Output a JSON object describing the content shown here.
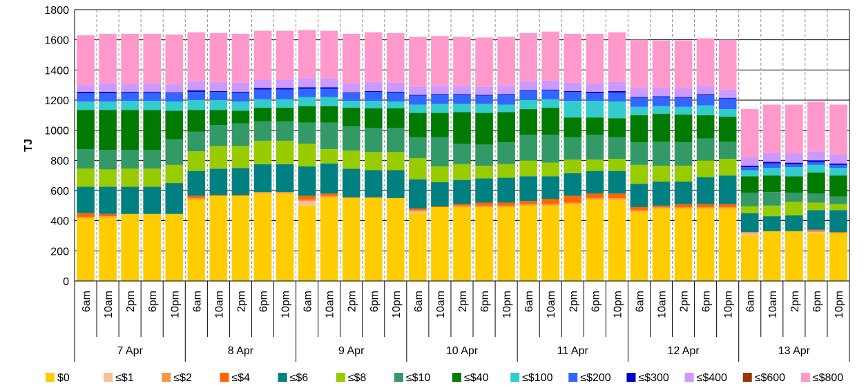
{
  "chart_data": {
    "type": "bar",
    "stacked": true,
    "ylabel": "TJ",
    "ylim": [
      0,
      1800
    ],
    "yticks": [
      0,
      200,
      400,
      600,
      800,
      1000,
      1200,
      1400,
      1600,
      1800
    ],
    "grid": "horizontal major + dashed vertical separators",
    "legend_position": "bottom",
    "groups": [
      "7 Apr",
      "8 Apr",
      "9 Apr",
      "10 Apr",
      "11 Apr",
      "12 Apr",
      "13 Apr"
    ],
    "times": [
      "6am",
      "10am",
      "2pm",
      "6pm",
      "10pm"
    ],
    "series": [
      {
        "name": "$0",
        "color": "#FFCC00",
        "values": [
          415,
          420,
          445,
          445,
          445,
          540,
          565,
          565,
          580,
          580,
          500,
          555,
          550,
          550,
          550,
          450,
          490,
          490,
          490,
          490,
          500,
          500,
          510,
          540,
          540,
          460,
          480,
          480,
          480,
          480,
          300,
          330,
          330,
          315,
          320
        ]
      },
      {
        "name": "≤$1",
        "color": "#FAC090",
        "values": [
          0,
          0,
          0,
          0,
          0,
          0,
          0,
          0,
          0,
          0,
          30,
          0,
          0,
          0,
          0,
          10,
          0,
          0,
          0,
          0,
          0,
          0,
          0,
          0,
          0,
          0,
          0,
          0,
          0,
          0,
          15,
          0,
          0,
          10,
          0
        ]
      },
      {
        "name": "≤$2",
        "color": "#F79646",
        "values": [
          10,
          10,
          0,
          0,
          0,
          10,
          0,
          0,
          10,
          10,
          10,
          10,
          5,
          5,
          0,
          10,
          0,
          10,
          10,
          10,
          10,
          10,
          10,
          10,
          10,
          10,
          10,
          10,
          10,
          10,
          10,
          0,
          0,
          10,
          0
        ]
      },
      {
        "name": "≤$4",
        "color": "#FF6600",
        "values": [
          25,
          15,
          0,
          0,
          0,
          15,
          5,
          5,
          0,
          0,
          25,
          15,
          0,
          0,
          0,
          10,
          5,
          10,
          20,
          20,
          20,
          35,
          45,
          30,
          30,
          20,
          10,
          20,
          20,
          20,
          0,
          0,
          0,
          5,
          5
        ]
      },
      {
        "name": "≤$6",
        "color": "#008080",
        "values": [
          175,
          180,
          180,
          180,
          205,
          165,
          175,
          180,
          185,
          185,
          195,
          200,
          190,
          180,
          185,
          195,
          160,
          160,
          160,
          165,
          165,
          150,
          150,
          150,
          150,
          155,
          160,
          150,
          180,
          190,
          125,
          100,
          105,
          130,
          145
        ]
      },
      {
        "name": "≤$8",
        "color": "#99CC00",
        "values": [
          120,
          115,
          120,
          120,
          120,
          130,
          150,
          145,
          155,
          155,
          150,
          95,
          120,
          120,
          120,
          140,
          105,
          105,
          85,
          90,
          105,
          90,
          90,
          75,
          80,
          125,
          105,
          105,
          110,
          110,
          45,
          70,
          90,
          50,
          40
        ]
      },
      {
        "name": "≤$10",
        "color": "#339966",
        "values": [
          130,
          130,
          125,
          125,
          170,
          130,
          140,
          150,
          130,
          130,
          140,
          175,
          160,
          160,
          160,
          140,
          195,
          135,
          140,
          145,
          170,
          185,
          150,
          165,
          145,
          150,
          160,
          155,
          145,
          115,
          90,
          90,
          60,
          60,
          50
        ]
      },
      {
        "name": "≤$40",
        "color": "#007A00",
        "values": [
          260,
          265,
          265,
          265,
          190,
          145,
          100,
          85,
          90,
          90,
          110,
          110,
          125,
          130,
          130,
          160,
          160,
          210,
          210,
          200,
          170,
          180,
          130,
          115,
          125,
          180,
          185,
          185,
          155,
          165,
          110,
          110,
          110,
          140,
          140
        ]
      },
      {
        "name": "≤$100",
        "color": "#33CCCC",
        "values": [
          55,
          55,
          60,
          60,
          60,
          65,
          65,
          60,
          55,
          55,
          60,
          60,
          45,
          50,
          45,
          55,
          60,
          55,
          60,
          50,
          60,
          55,
          110,
          110,
          110,
          55,
          50,
          50,
          65,
          50,
          40,
          50,
          60,
          50,
          50
        ]
      },
      {
        "name": "≤$200",
        "color": "#3366FF",
        "values": [
          55,
          55,
          55,
          55,
          55,
          55,
          55,
          60,
          65,
          65,
          55,
          55,
          50,
          60,
          60,
          60,
          60,
          60,
          55,
          65,
          60,
          60,
          60,
          50,
          60,
          60,
          60,
          60,
          70,
          70,
          20,
          30,
          20,
          20,
          20
        ]
      },
      {
        "name": "≤$300",
        "color": "#0000CC",
        "values": [
          10,
          10,
          5,
          5,
          5,
          10,
          5,
          5,
          10,
          10,
          10,
          10,
          5,
          5,
          5,
          5,
          5,
          5,
          5,
          5,
          5,
          5,
          5,
          10,
          10,
          5,
          5,
          5,
          5,
          5,
          10,
          10,
          10,
          10,
          10
        ]
      },
      {
        "name": "≤$400",
        "color": "#CC99FF",
        "values": [
          45,
          55,
          55,
          55,
          55,
          60,
          60,
          60,
          55,
          55,
          60,
          60,
          60,
          60,
          60,
          55,
          55,
          55,
          55,
          55,
          60,
          60,
          55,
          55,
          60,
          60,
          55,
          60,
          55,
          55,
          55,
          60,
          60,
          60,
          60
        ]
      },
      {
        "name": "≤$600",
        "color": "#993300",
        "values": [
          0,
          0,
          0,
          0,
          0,
          0,
          0,
          0,
          0,
          0,
          0,
          0,
          0,
          0,
          0,
          0,
          0,
          0,
          0,
          0,
          0,
          0,
          0,
          0,
          0,
          0,
          0,
          0,
          0,
          0,
          0,
          0,
          0,
          0,
          0
        ]
      },
      {
        "name": "≤$800",
        "color": "#FF99CC",
        "values": [
          330,
          330,
          330,
          330,
          330,
          325,
          325,
          325,
          325,
          325,
          320,
          315,
          330,
          330,
          330,
          330,
          330,
          325,
          325,
          325,
          320,
          325,
          325,
          330,
          330,
          320,
          315,
          315,
          315,
          330,
          320,
          320,
          325,
          330,
          330
        ]
      }
    ]
  }
}
